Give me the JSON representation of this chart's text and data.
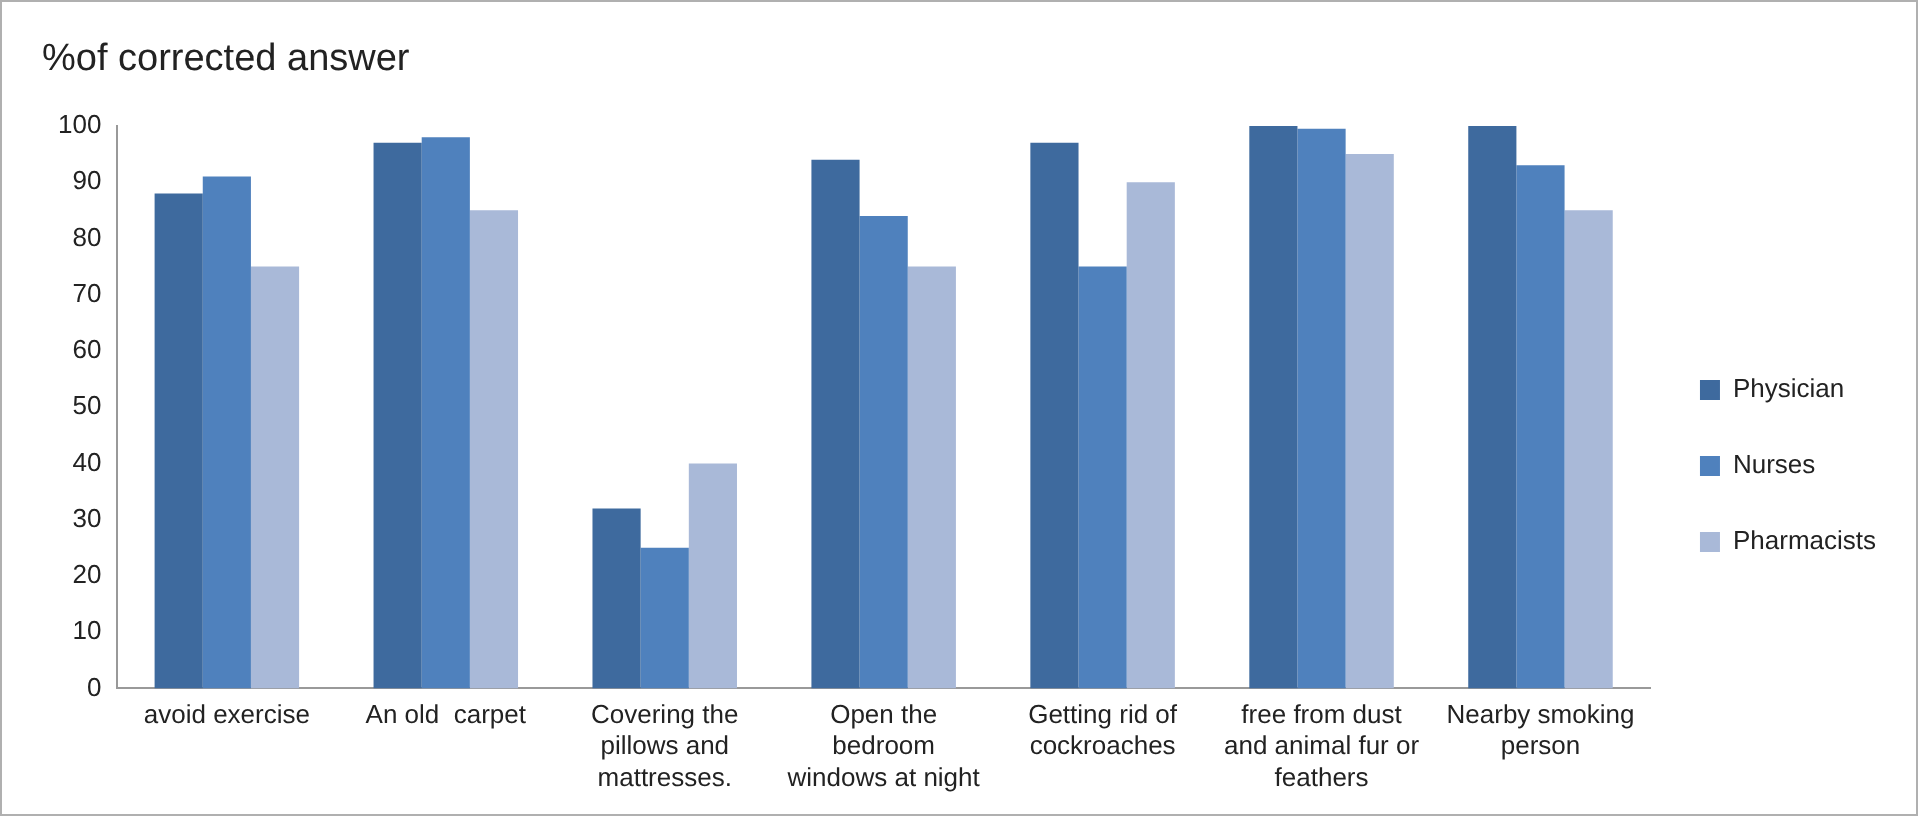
{
  "chart_data": {
    "type": "bar",
    "title": "%of corrected answer",
    "categories": [
      "avoid exercise",
      "An old  carpet",
      "Covering the pillows and mattresses.",
      "Open the bedroom windows at night",
      "Getting rid of cockroaches",
      "free from dust and animal fur or feathers",
      "Nearby smoking person"
    ],
    "series": [
      {
        "name": "Physician",
        "color": "#3e6a9e",
        "values": [
          88,
          97,
          32,
          94,
          97,
          100,
          100
        ]
      },
      {
        "name": "Nurses",
        "color": "#4f81bd",
        "values": [
          91,
          98,
          25,
          84,
          75,
          99.5,
          93
        ]
      },
      {
        "name": "Pharmacists",
        "color": "#a9b9d8",
        "values": [
          75,
          85,
          40,
          75,
          90,
          95,
          85
        ]
      }
    ],
    "ylim": [
      0,
      100
    ],
    "yticks": [
      0,
      10,
      20,
      30,
      40,
      50,
      60,
      70,
      80,
      90,
      100
    ],
    "grid": false,
    "legend": "right"
  }
}
